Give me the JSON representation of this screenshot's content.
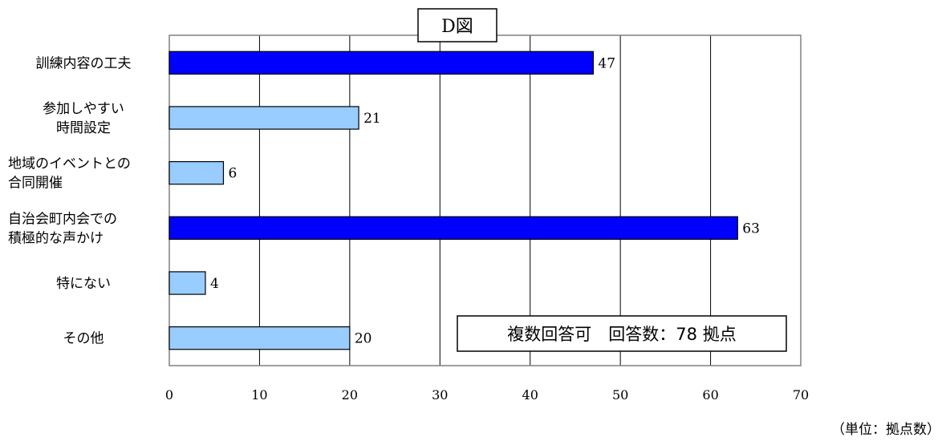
{
  "chart_data": {
    "type": "bar",
    "orientation": "horizontal",
    "title": "D図",
    "categories": [
      [
        "訓練内容の工夫"
      ],
      [
        "参加しやすい",
        "時間設定"
      ],
      [
        "地域のイベントとの",
        "合同開催"
      ],
      [
        "自治会町内会での",
        "積極的な声かけ"
      ],
      [
        "特にない"
      ],
      [
        "その他"
      ]
    ],
    "values": [
      47,
      21,
      6,
      63,
      4,
      20
    ],
    "bar_colors": [
      "#0000ff",
      "#99ccff",
      "#99ccff",
      "#0000ff",
      "#99ccff",
      "#99ccff"
    ],
    "xlim": [
      0,
      70
    ],
    "xticks": [
      0,
      10,
      20,
      30,
      40,
      50,
      60,
      70
    ],
    "grid": true,
    "note": "複数回答可　回答数：78 拠点",
    "unit": "（単位：拠点数）"
  }
}
